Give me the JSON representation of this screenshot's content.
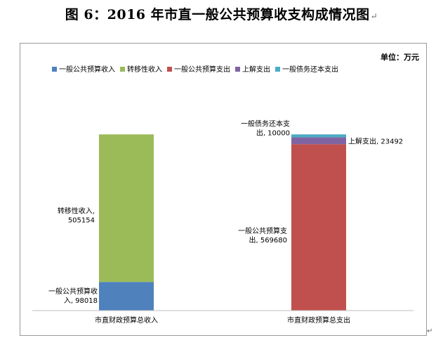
{
  "figure": {
    "title": "图 6：2016 年市直一般公共预算收支构成情况图",
    "paragraph_mark": "↵"
  },
  "colors": {
    "general_budget_income": "#4f81bd",
    "transfer_income": "#9bbb59",
    "general_budget_expenditure": "#c0504d",
    "upper_remit_expenditure": "#8064a2",
    "debt_repayment_expenditure": "#4bacc6",
    "frame_border": "#9a9a9a",
    "axis_line": "#bfbfbf"
  },
  "chart_data": {
    "type": "bar",
    "stacked": true,
    "unit": "单位：万元",
    "categories": [
      "市直财政预算总收入",
      "市直财政预算总支出"
    ],
    "series": [
      {
        "name": "一般公共预算收入",
        "values": [
          98018,
          null
        ],
        "color": "#4f81bd"
      },
      {
        "name": "转移性收入",
        "values": [
          505154,
          null
        ],
        "color": "#9bbb59"
      },
      {
        "name": "一般公共预算支出",
        "values": [
          null,
          569680
        ],
        "color": "#c0504d"
      },
      {
        "name": "上解支出",
        "values": [
          null,
          23492
        ],
        "color": "#8064a2"
      },
      {
        "name": "一般债务还本支出",
        "values": [
          null,
          10000
        ],
        "color": "#4bacc6"
      }
    ],
    "data_labels": [
      {
        "category": 0,
        "series": 0,
        "lines": [
          "一般公共预算收",
          "入, 98018"
        ]
      },
      {
        "category": 0,
        "series": 1,
        "lines": [
          "转移性收入,",
          "505154"
        ]
      },
      {
        "category": 1,
        "series": 2,
        "lines": [
          "一般公共预算支",
          "出, 569680"
        ]
      },
      {
        "category": 1,
        "series": 3,
        "lines": [
          "上解支出, 23492"
        ]
      },
      {
        "category": 1,
        "series": 4,
        "lines": [
          "一般债务还本支",
          "出, 10000"
        ]
      }
    ],
    "ylim": [
      0,
      700000
    ],
    "gridlines": false,
    "legend_position": "top"
  }
}
